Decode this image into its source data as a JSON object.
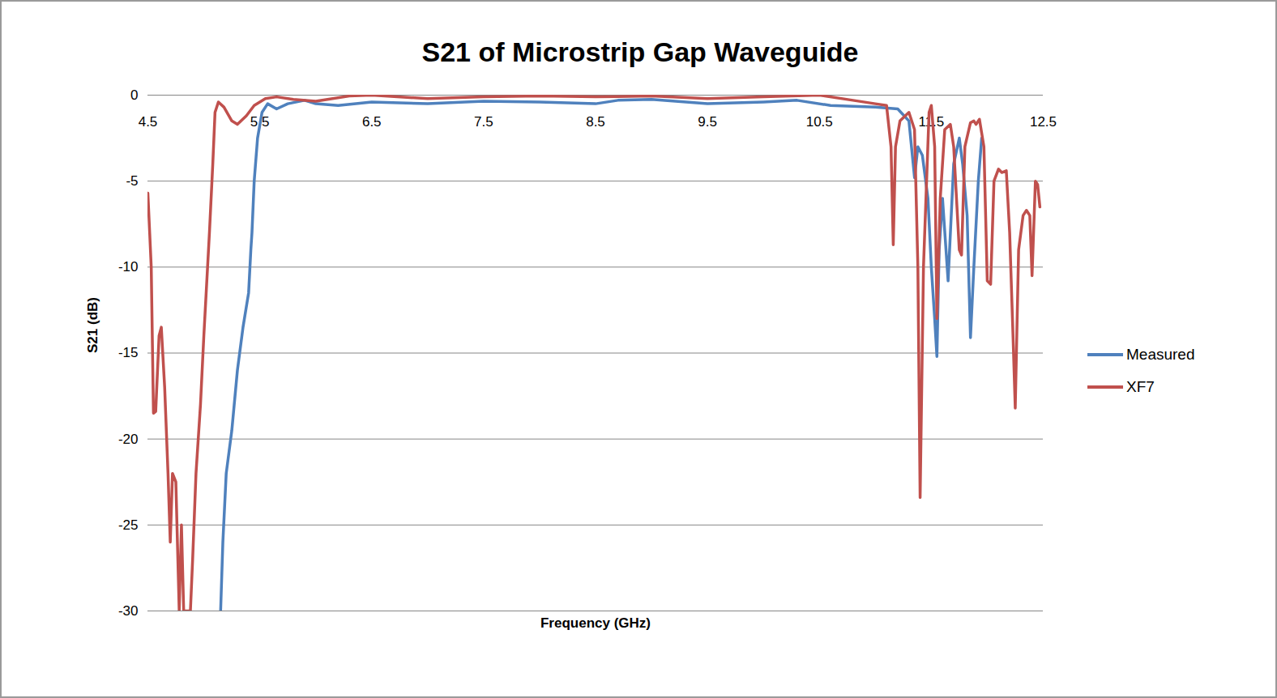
{
  "chart_data": {
    "type": "line",
    "title": "S21 of Microstrip Gap Waveguide",
    "x_label": "Frequency (GHz)",
    "y_label": "S21 (dB)",
    "xlim": [
      4.5,
      12.5
    ],
    "xticks": [
      4.5,
      5.5,
      6.5,
      7.5,
      8.5,
      9.5,
      10.5,
      11.5,
      12.5
    ],
    "ylim": [
      -30,
      0
    ],
    "yticks": [
      0,
      -5,
      -10,
      -15,
      -20,
      -25,
      -30
    ],
    "grid": true,
    "legend": "right",
    "series": [
      {
        "name": "Measured",
        "color": "#4f81bd",
        "x": [
          5.15,
          5.17,
          5.2,
          5.25,
          5.3,
          5.35,
          5.4,
          5.42,
          5.43,
          5.45,
          5.48,
          5.52,
          5.57,
          5.65,
          5.75,
          5.9,
          6.0,
          6.2,
          6.5,
          7.0,
          7.5,
          8.0,
          8.5,
          8.7,
          9.0,
          9.5,
          10.0,
          10.3,
          10.6,
          11.0,
          11.2,
          11.3,
          11.35,
          11.38,
          11.42,
          11.47,
          11.5,
          11.53,
          11.55,
          11.57,
          11.6,
          11.65,
          11.7,
          11.75,
          11.78,
          11.82,
          11.85,
          11.88,
          11.92,
          11.95
        ],
        "values": [
          -30,
          -26,
          -22,
          -19.5,
          -16,
          -13.5,
          -11.5,
          -9,
          -8,
          -5,
          -2.5,
          -1,
          -0.5,
          -0.8,
          -0.5,
          -0.3,
          -0.5,
          -0.6,
          -0.4,
          -0.5,
          -0.35,
          -0.4,
          -0.5,
          -0.3,
          -0.25,
          -0.5,
          -0.4,
          -0.3,
          -0.6,
          -0.7,
          -0.8,
          -1.5,
          -4.8,
          -3.0,
          -3.5,
          -6,
          -10,
          -13,
          -15.2,
          -9,
          -6,
          -10.8,
          -4,
          -2.5,
          -4,
          -7,
          -14.1,
          -10,
          -5,
          -2.5
        ]
      },
      {
        "name": "XF7",
        "color": "#c0504d",
        "x": [
          4.5,
          4.53,
          4.55,
          4.57,
          4.6,
          4.62,
          4.65,
          4.68,
          4.7,
          4.72,
          4.75,
          4.78,
          4.8,
          4.82,
          4.88,
          4.9,
          4.93,
          4.97,
          5.0,
          5.05,
          5.08,
          5.1,
          5.13,
          5.18,
          5.25,
          5.3,
          5.38,
          5.45,
          5.55,
          5.65,
          5.8,
          6.0,
          6.3,
          6.5,
          7.0,
          7.5,
          8.0,
          8.5,
          9.0,
          9.5,
          10.0,
          10.5,
          10.8,
          11.0,
          11.1,
          11.14,
          11.16,
          11.18,
          11.22,
          11.3,
          11.35,
          11.38,
          11.4,
          11.43,
          11.48,
          11.5,
          11.53,
          11.55,
          11.58,
          11.62,
          11.67,
          11.7,
          11.75,
          11.77,
          11.8,
          11.85,
          11.88,
          11.9,
          11.93,
          11.97,
          12.0,
          12.03,
          12.06,
          12.1,
          12.13,
          12.17,
          12.2,
          12.23,
          12.25,
          12.28,
          12.32,
          12.35,
          12.38,
          12.4,
          12.43,
          12.45,
          12.47
        ],
        "values": [
          -5.7,
          -10,
          -18.5,
          -18.4,
          -14,
          -13.5,
          -17,
          -22,
          -26,
          -22,
          -22.5,
          -30,
          -25,
          -30,
          -30,
          -27,
          -22,
          -18,
          -14,
          -8,
          -4,
          -1,
          -0.4,
          -0.7,
          -1.5,
          -1.7,
          -1.2,
          -0.6,
          -0.2,
          -0.1,
          -0.25,
          -0.35,
          -0.05,
          0,
          -0.2,
          -0.1,
          -0.05,
          -0.1,
          -0.05,
          -0.2,
          -0.1,
          0,
          -0.3,
          -0.5,
          -0.6,
          -3,
          -8.7,
          -3,
          -1.5,
          -1.0,
          -2,
          -10,
          -23.4,
          -10,
          -1,
          -0.6,
          -3,
          -13,
          -6,
          -2,
          -1.7,
          -3,
          -9,
          -9.3,
          -3,
          -1.6,
          -1.5,
          -1.7,
          -1.4,
          -3,
          -10.8,
          -11,
          -5,
          -4.3,
          -4.5,
          -4.4,
          -8,
          -14,
          -18.2,
          -9,
          -7,
          -6.7,
          -7,
          -10.5,
          -5,
          -5.2,
          -6.5
        ]
      }
    ]
  }
}
